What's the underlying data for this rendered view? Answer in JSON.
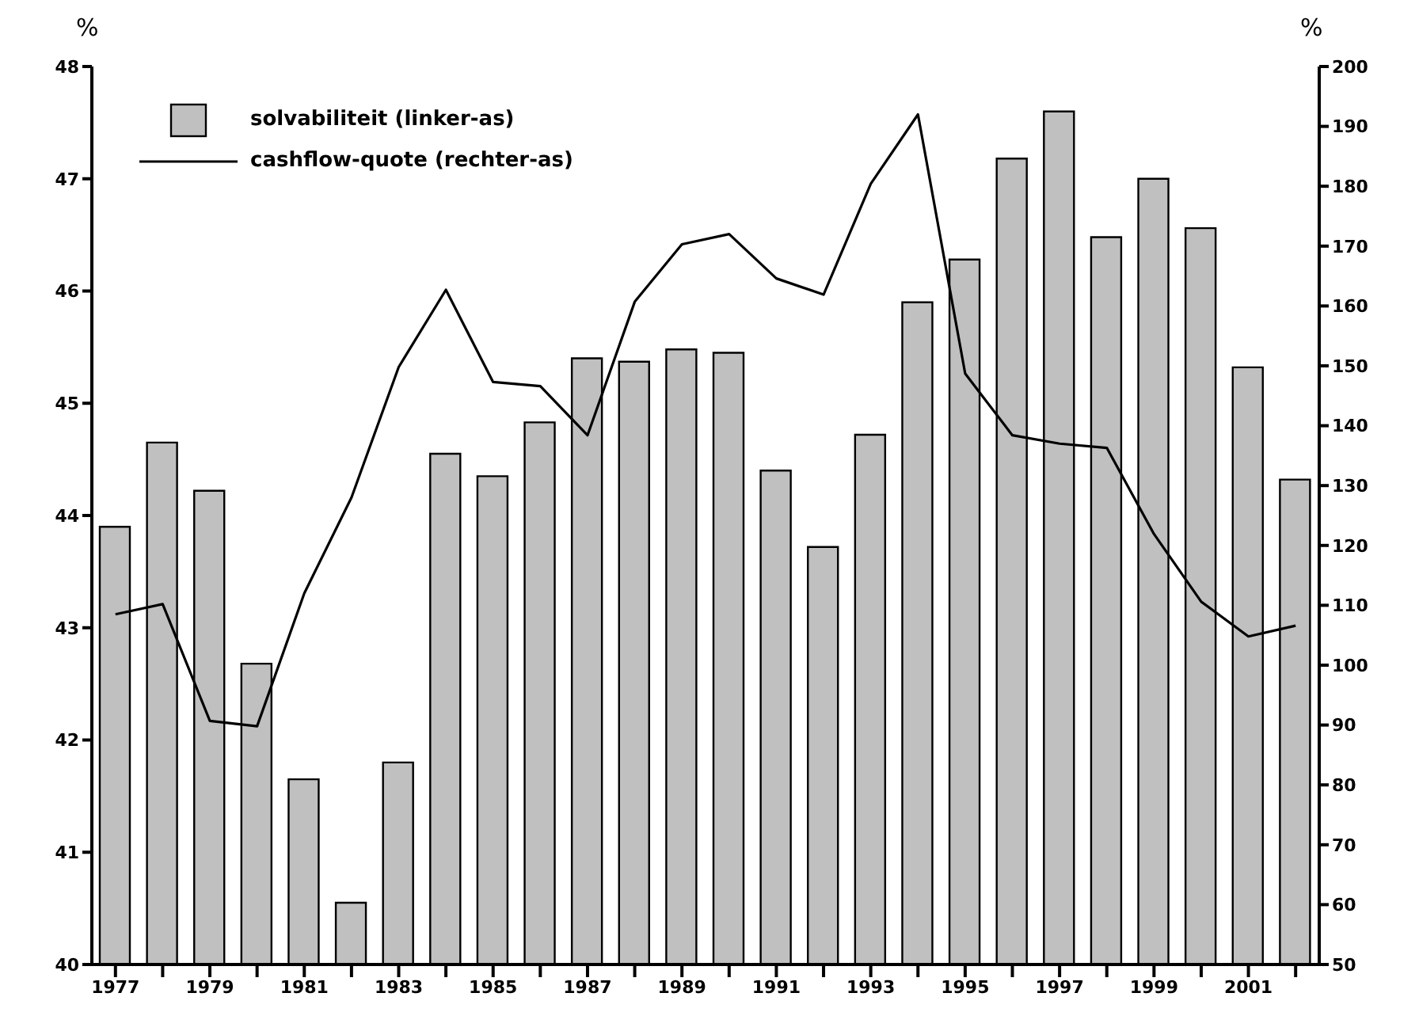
{
  "chart_data": {
    "type": "bar",
    "ylabel": "%",
    "y2label": "%",
    "categories": [
      "1977",
      null,
      "1979",
      null,
      "1981",
      null,
      "1983",
      null,
      "1985",
      null,
      "1987",
      null,
      "1989",
      null,
      "1991",
      null,
      "1993",
      null,
      "1995",
      null,
      "1997",
      null,
      "1999",
      null,
      "2001",
      null
    ],
    "series": [
      {
        "name": "solvabiliteit (linker-as)",
        "color": "#c0c0c0",
        "values": [
          43.9,
          44.65,
          44.22,
          42.68,
          41.65,
          40.55,
          41.8,
          44.55,
          44.35,
          44.83,
          45.4,
          45.37,
          45.48,
          45.45,
          44.4,
          43.72,
          44.72,
          45.9,
          46.28,
          47.18,
          47.6,
          46.48,
          47.0,
          46.56,
          45.32,
          44.32
        ]
      },
      {
        "name": "cashflow-quote (rechter-as)",
        "type": "line",
        "axis": "y2",
        "color": "#000000",
        "values": [
          108.5,
          110.2,
          90.7,
          89.8,
          112,
          128,
          149.8,
          162.7,
          147.3,
          146.6,
          138.4,
          160.7,
          170.3,
          172,
          164.6,
          161.9,
          180.4,
          192,
          148.7,
          138.4,
          137,
          136.3,
          121.9,
          110.6,
          104.8,
          106.6
        ]
      }
    ],
    "ylim": [
      40,
      48
    ],
    "yticks": [
      40,
      41,
      42,
      43,
      44,
      45,
      46,
      47,
      48
    ],
    "y2lim": [
      50,
      200
    ],
    "y2ticks": [
      50,
      60,
      70,
      80,
      90,
      100,
      110,
      120,
      130,
      140,
      150,
      160,
      170,
      180,
      190,
      200
    ],
    "legend": "top left",
    "grid": false,
    "marker": "none",
    "line_style": "solid"
  }
}
